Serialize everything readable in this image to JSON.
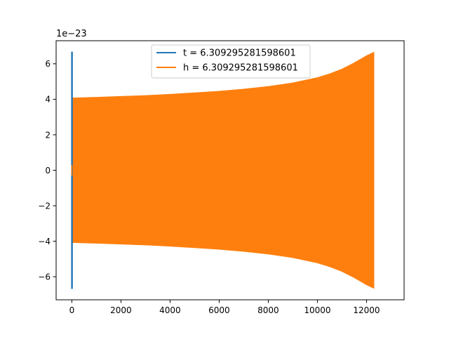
{
  "chart_data": {
    "type": "line",
    "title": "",
    "xlabel": "",
    "ylabel": "",
    "offset_text": "1e−23",
    "y_scale_exponent": -23,
    "xlim": [
      -640,
      13530
    ],
    "ylim": [
      -7.3,
      7.3
    ],
    "x_ticks": [
      0,
      2000,
      4000,
      6000,
      8000,
      10000,
      12000
    ],
    "x_tick_labels": [
      "0",
      "2000",
      "4000",
      "6000",
      "8000",
      "10000",
      "12000"
    ],
    "y_ticks": [
      -6,
      -4,
      -2,
      0,
      2,
      4,
      6
    ],
    "y_tick_labels": [
      "−6",
      "−4",
      "−2",
      "0",
      "2",
      "4",
      "6"
    ],
    "grid": false,
    "legend_position": "upper-center",
    "series": [
      {
        "name": "t = 6.309295281598601",
        "color": "#1f77b4",
        "x_range": [
          0,
          12
        ],
        "envelope": {
          "x": [
            0,
            12
          ],
          "upper": [
            6.65,
            6.65
          ],
          "lower": [
            -6.65,
            -6.65
          ]
        }
      },
      {
        "name": "h = 6.309295281598601",
        "color": "#ff7f0e",
        "x_range": [
          0,
          12300
        ],
        "envelope": {
          "x": [
            0,
            1000,
            2000,
            3000,
            4000,
            5000,
            6000,
            7000,
            8000,
            9000,
            10000,
            10500,
            11000,
            11500,
            12000,
            12300
          ],
          "upper": [
            4.07,
            4.11,
            4.16,
            4.21,
            4.28,
            4.36,
            4.45,
            4.57,
            4.72,
            4.92,
            5.22,
            5.43,
            5.7,
            6.05,
            6.45,
            6.65
          ],
          "lower": [
            -4.07,
            -4.11,
            -4.16,
            -4.21,
            -4.28,
            -4.36,
            -4.45,
            -4.57,
            -4.72,
            -4.92,
            -5.22,
            -5.43,
            -5.7,
            -6.05,
            -6.45,
            -6.65
          ]
        }
      }
    ]
  }
}
